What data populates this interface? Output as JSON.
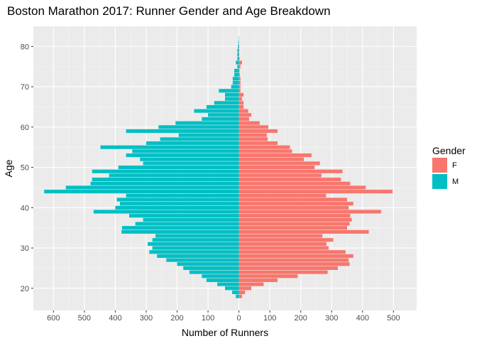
{
  "chart_data": {
    "type": "bar",
    "orientation": "horizontal",
    "title": "Boston Marathon 2017: Runner Gender and Age Breakdown",
    "xlabel": "Number of Runners",
    "ylabel": "Age",
    "xlim": [
      -665,
      575
    ],
    "ylim": [
      14.5,
      85
    ],
    "x_ticks": [
      -600,
      -500,
      -400,
      -300,
      -200,
      -100,
      0,
      100,
      200,
      300,
      400,
      500
    ],
    "x_tick_labels": [
      "600",
      "500",
      "400",
      "300",
      "200",
      "100",
      "0",
      "100",
      "200",
      "300",
      "400",
      "500"
    ],
    "y_ticks": [
      20,
      30,
      40,
      50,
      60,
      70,
      80
    ],
    "y_tick_labels": [
      "20",
      "30",
      "40",
      "50",
      "60",
      "70",
      "80"
    ],
    "grid": true,
    "legend": {
      "title": "Gender",
      "position": "right",
      "entries": [
        {
          "label": "F",
          "color": "#F8766D"
        },
        {
          "label": "M",
          "color": "#00BFC4"
        }
      ]
    },
    "ages": [
      18,
      19,
      20,
      21,
      22,
      23,
      24,
      25,
      26,
      27,
      28,
      29,
      30,
      31,
      32,
      33,
      34,
      35,
      36,
      37,
      38,
      39,
      40,
      41,
      42,
      43,
      44,
      45,
      46,
      47,
      48,
      49,
      50,
      51,
      52,
      53,
      54,
      55,
      56,
      57,
      58,
      59,
      60,
      61,
      62,
      63,
      64,
      65,
      66,
      67,
      68,
      69,
      70,
      71,
      72,
      73,
      74,
      75,
      76,
      77,
      78,
      79,
      80,
      81,
      82,
      83
    ],
    "series": [
      {
        "name": "F",
        "color": "#F8766D",
        "values": [
          10,
          20,
          40,
          80,
          125,
          190,
          287,
          320,
          358,
          355,
          370,
          345,
          290,
          283,
          305,
          270,
          420,
          350,
          358,
          365,
          360,
          460,
          355,
          370,
          350,
          282,
          497,
          410,
          360,
          330,
          267,
          335,
          245,
          262,
          210,
          235,
          172,
          165,
          125,
          93,
          90,
          125,
          95,
          67,
          33,
          40,
          30,
          15,
          15,
          10,
          15,
          5,
          5,
          5,
          5,
          3,
          2,
          5,
          10,
          2,
          1,
          1,
          1,
          0,
          0,
          0
        ]
      },
      {
        "name": "M",
        "color": "#00BFC4",
        "values": [
          10,
          22,
          45,
          70,
          105,
          120,
          160,
          180,
          200,
          235,
          265,
          290,
          280,
          295,
          280,
          270,
          380,
          378,
          335,
          310,
          355,
          470,
          400,
          385,
          395,
          365,
          630,
          560,
          480,
          475,
          420,
          475,
          390,
          310,
          320,
          365,
          345,
          448,
          300,
          255,
          195,
          365,
          260,
          205,
          120,
          100,
          145,
          105,
          80,
          45,
          45,
          65,
          25,
          20,
          20,
          15,
          15,
          5,
          10,
          5,
          5,
          5,
          3,
          2,
          1,
          0
        ]
      }
    ]
  }
}
